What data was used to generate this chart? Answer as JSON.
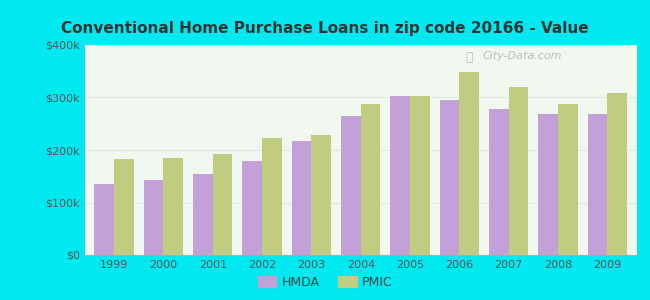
{
  "title": "Conventional Home Purchase Loans in zip code 20166 - Value",
  "years": [
    1999,
    2000,
    2001,
    2002,
    2003,
    2004,
    2005,
    2006,
    2007,
    2008,
    2009
  ],
  "hmda": [
    135000,
    142000,
    155000,
    180000,
    218000,
    265000,
    302000,
    295000,
    278000,
    268000,
    268000
  ],
  "pmic": [
    183000,
    185000,
    193000,
    223000,
    228000,
    288000,
    303000,
    348000,
    320000,
    287000,
    308000
  ],
  "hmda_color": "#c4a0d8",
  "pmic_color": "#c0cc80",
  "background_outer": "#00e8f0",
  "ylim": [
    0,
    400000
  ],
  "yticks": [
    0,
    100000,
    200000,
    300000,
    400000
  ],
  "ytick_labels": [
    "$0",
    "$100k",
    "$200k",
    "$300k",
    "$400k"
  ],
  "bar_width": 0.4,
  "legend_hmda": "HMDA",
  "legend_pmic": "PMIC",
  "watermark": "City-Data.com",
  "title_color": "#333333",
  "title_fontsize": 11,
  "tick_fontsize": 8,
  "grid_color": "#e0e8e0",
  "ytick_color": "#555555",
  "xtick_color": "#555555"
}
